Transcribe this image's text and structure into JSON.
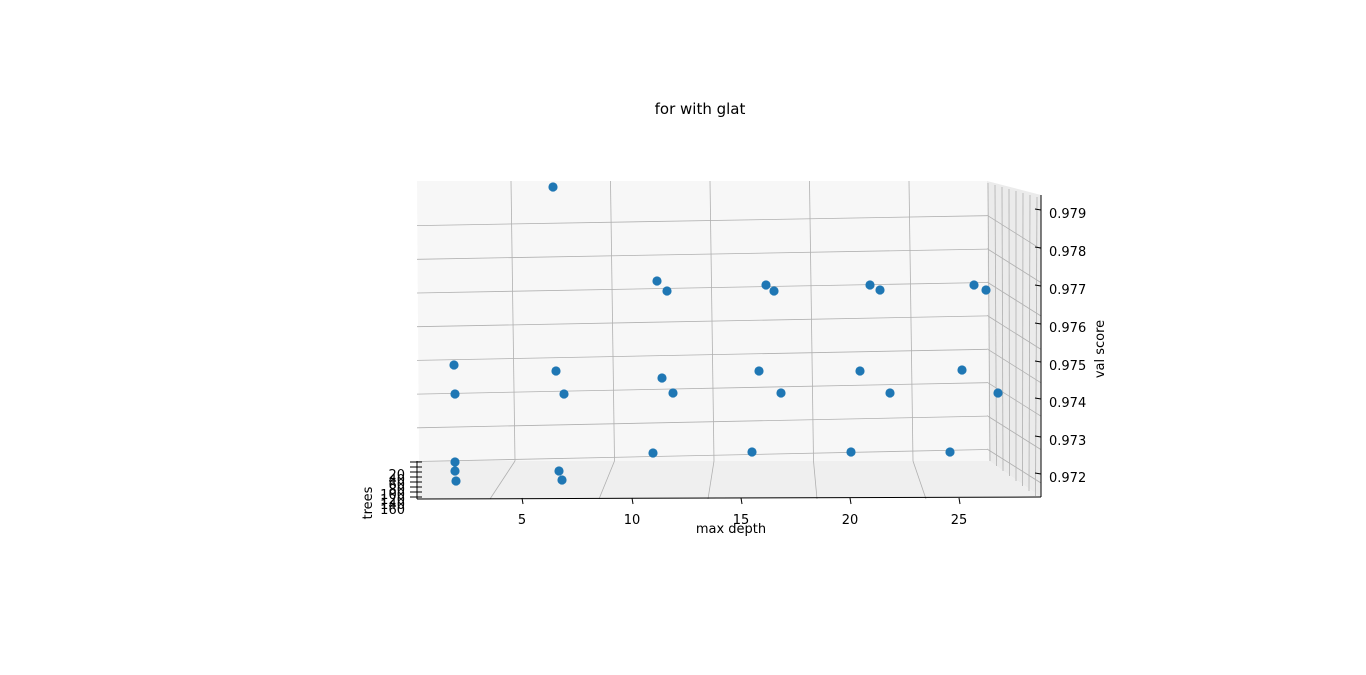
{
  "chart_data": {
    "type": "scatter",
    "projection": "3d",
    "title": "for with glat",
    "xlabel": "max depth",
    "ylabel": "trees",
    "zlabel": "val score",
    "x_ticks": [
      "5",
      "10",
      "15",
      "20",
      "25"
    ],
    "y_ticks": [
      "20",
      "40",
      "60",
      "80",
      "100",
      "120",
      "140",
      "160"
    ],
    "z_ticks": [
      "0.972",
      "0.973",
      "0.974",
      "0.975",
      "0.976",
      "0.977",
      "0.978",
      "0.979"
    ],
    "grid": true,
    "marker_color": "#1f77b4",
    "pane_color": "#f7f7f7",
    "grid_color": "#b0b0b0",
    "points": [
      {
        "x": 3,
        "y": 20,
        "z": 0.9718
      },
      {
        "x": 3,
        "y": 20,
        "z": 0.9741
      },
      {
        "x": 3,
        "y": 40,
        "z": 0.974
      },
      {
        "x": 3,
        "y": 60,
        "z": 0.9721
      },
      {
        "x": 3,
        "y": 80,
        "z": 0.9718
      },
      {
        "x": 8,
        "y": 20,
        "z": 0.9794
      },
      {
        "x": 8,
        "y": 40,
        "z": 0.9747
      },
      {
        "x": 8,
        "y": 60,
        "z": 0.9737
      },
      {
        "x": 8,
        "y": 80,
        "z": 0.9716
      },
      {
        "x": 13,
        "y": 20,
        "z": 0.9719
      },
      {
        "x": 13,
        "y": 40,
        "z": 0.9769
      },
      {
        "x": 13,
        "y": 60,
        "z": 0.9766
      },
      {
        "x": 13,
        "y": 80,
        "z": 0.9736
      },
      {
        "x": 13,
        "y": 60,
        "z": 0.9743
      },
      {
        "x": 18,
        "y": 20,
        "z": 0.9719
      },
      {
        "x": 18,
        "y": 40,
        "z": 0.9766
      },
      {
        "x": 18,
        "y": 60,
        "z": 0.9764
      },
      {
        "x": 18,
        "y": 40,
        "z": 0.9745
      },
      {
        "x": 18,
        "y": 80,
        "z": 0.9736
      },
      {
        "x": 23,
        "y": 20,
        "z": 0.9719
      },
      {
        "x": 23,
        "y": 40,
        "z": 0.9766
      },
      {
        "x": 23,
        "y": 60,
        "z": 0.9764
      },
      {
        "x": 23,
        "y": 40,
        "z": 0.9745
      },
      {
        "x": 23,
        "y": 80,
        "z": 0.9736
      },
      {
        "x": 28,
        "y": 20,
        "z": 0.9719
      },
      {
        "x": 28,
        "y": 40,
        "z": 0.9766
      },
      {
        "x": 28,
        "y": 60,
        "z": 0.9764
      },
      {
        "x": 28,
        "y": 40,
        "z": 0.9745
      },
      {
        "x": 28,
        "y": 80,
        "z": 0.9736
      }
    ]
  }
}
